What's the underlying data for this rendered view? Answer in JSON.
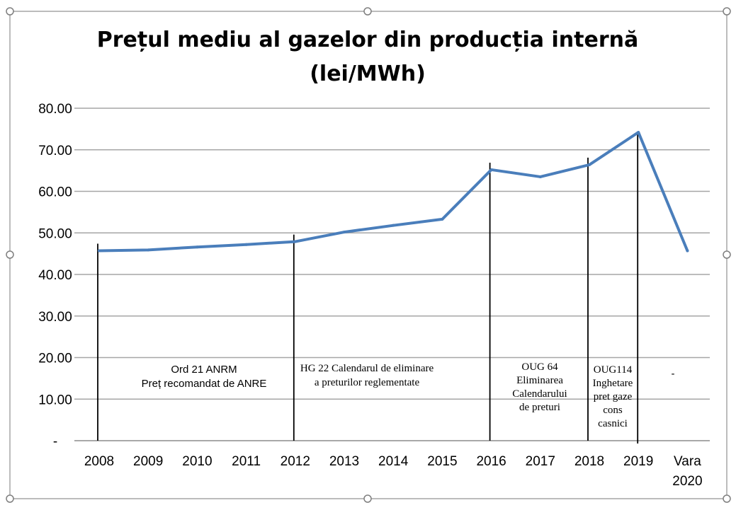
{
  "chart_data": {
    "type": "line",
    "title": "Prețul mediu al gazelor din producția internă",
    "subtitle": "(lei/MWh)",
    "xlabel": "",
    "ylabel": "",
    "categories": [
      "2008",
      "2009",
      "2010",
      "2011",
      "2012",
      "2013",
      "2014",
      "2015",
      "2016",
      "2017",
      "2018",
      "2019",
      "Vara 2020"
    ],
    "values": [
      45.7,
      45.9,
      46.6,
      47.2,
      47.9,
      50.2,
      51.8,
      53.3,
      65.2,
      63.5,
      66.4,
      74.2,
      45.7
    ],
    "ylim": [
      0,
      80
    ],
    "yticks": [
      "-",
      "10.00",
      "20.00",
      "30.00",
      "40.00",
      "50.00",
      "60.00",
      "70.00",
      "80.00"
    ],
    "grid": true,
    "legend": "none",
    "line_color": "#4a7ebb",
    "annotations": [
      {
        "lines": [
          "Ord 21 ANRM",
          "Preț recomandat de ANRE"
        ],
        "marker_at": "2008"
      },
      {
        "lines": [
          "HG 22 Calendarul de eliminare",
          "a preturilor reglementate"
        ],
        "marker_at": "2012"
      },
      {
        "lines": [
          "OUG 64",
          "Eliminarea",
          "Calendarului",
          "de preturi"
        ],
        "marker_at": "2016"
      },
      {
        "lines": [
          "OUG114",
          "Inghetare",
          "pret gaze",
          "cons",
          "casnici"
        ],
        "marker_at": "2018"
      },
      {
        "lines": [
          "-"
        ],
        "marker_at": "Vara 2020"
      }
    ]
  }
}
